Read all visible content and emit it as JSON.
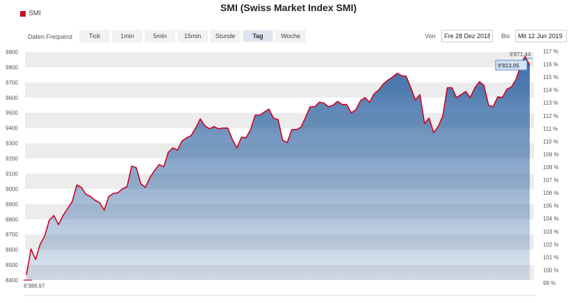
{
  "title": "SMI (Swiss Market Index SMI)",
  "legend": {
    "label": "SMI",
    "color": "#cc0022"
  },
  "frequency": {
    "label": "Daten Frequenz",
    "buttons": [
      "Tick",
      "1min",
      "5min",
      "15min",
      "Stunde",
      "Tag",
      "Woche"
    ],
    "active": "Tag"
  },
  "date_range": {
    "from_label": "Von",
    "from_value": "Fre 28 Dez 2018",
    "to_label": "Bis",
    "to_value": "Mit 12 Jun 2019"
  },
  "labels": {
    "start_value": "8'388.97",
    "current_value": "9'813.05",
    "high_value": "9'871.44"
  },
  "colors": {
    "line": "#cc0022",
    "area_top": "#2f64a2",
    "area_bottom": "#ffffff",
    "band": "#ececec",
    "current_box_bg": "#d3e3f5",
    "current_box_border": "#5b89c4",
    "current_text": "#3a2fa0",
    "high_text": "#3a8fbf"
  },
  "chart_data": {
    "type": "area",
    "title": "SMI (Swiss Market Index SMI)",
    "series": [
      {
        "name": "SMI",
        "values": [
          8435,
          8605,
          8535,
          8635,
          8690,
          8795,
          8825,
          8765,
          8825,
          8870,
          8915,
          9025,
          9010,
          8965,
          8950,
          8925,
          8910,
          8860,
          8950,
          8970,
          8975,
          9000,
          9015,
          9150,
          9140,
          9035,
          9010,
          9075,
          9120,
          9160,
          9145,
          9240,
          9270,
          9255,
          9315,
          9335,
          9350,
          9400,
          9460,
          9415,
          9395,
          9410,
          9395,
          9400,
          9400,
          9325,
          9270,
          9340,
          9335,
          9390,
          9485,
          9485,
          9505,
          9525,
          9465,
          9455,
          9320,
          9305,
          9390,
          9390,
          9405,
          9470,
          9540,
          9540,
          9570,
          9565,
          9540,
          9550,
          9575,
          9555,
          9555,
          9500,
          9520,
          9580,
          9600,
          9570,
          9625,
          9650,
          9690,
          9715,
          9735,
          9760,
          9745,
          9740,
          9665,
          9585,
          9620,
          9430,
          9465,
          9370,
          9410,
          9480,
          9665,
          9665,
          9600,
          9620,
          9640,
          9600,
          9665,
          9705,
          9680,
          9550,
          9540,
          9605,
          9600,
          9655,
          9670,
          9720,
          9810,
          9871.44,
          9813.05
        ]
      }
    ],
    "y_left": {
      "min": 8400,
      "max": 9900,
      "ticks": [
        8400,
        8500,
        8600,
        8700,
        8800,
        8900,
        9000,
        9100,
        9200,
        9300,
        9400,
        9500,
        9600,
        9700,
        9800,
        9900
      ]
    },
    "y_right": {
      "ticks": [
        "99 %",
        "100 %",
        "101 %",
        "102 %",
        "103 %",
        "104 %",
        "105 %",
        "106 %",
        "107 %",
        "108 %",
        "109 %",
        "110 %",
        "111 %",
        "112 %",
        "113 %",
        "114 %",
        "115 %",
        "116 %",
        "117 %"
      ]
    },
    "grid": "alternating horizontal bands",
    "legend_position": "top-left"
  }
}
